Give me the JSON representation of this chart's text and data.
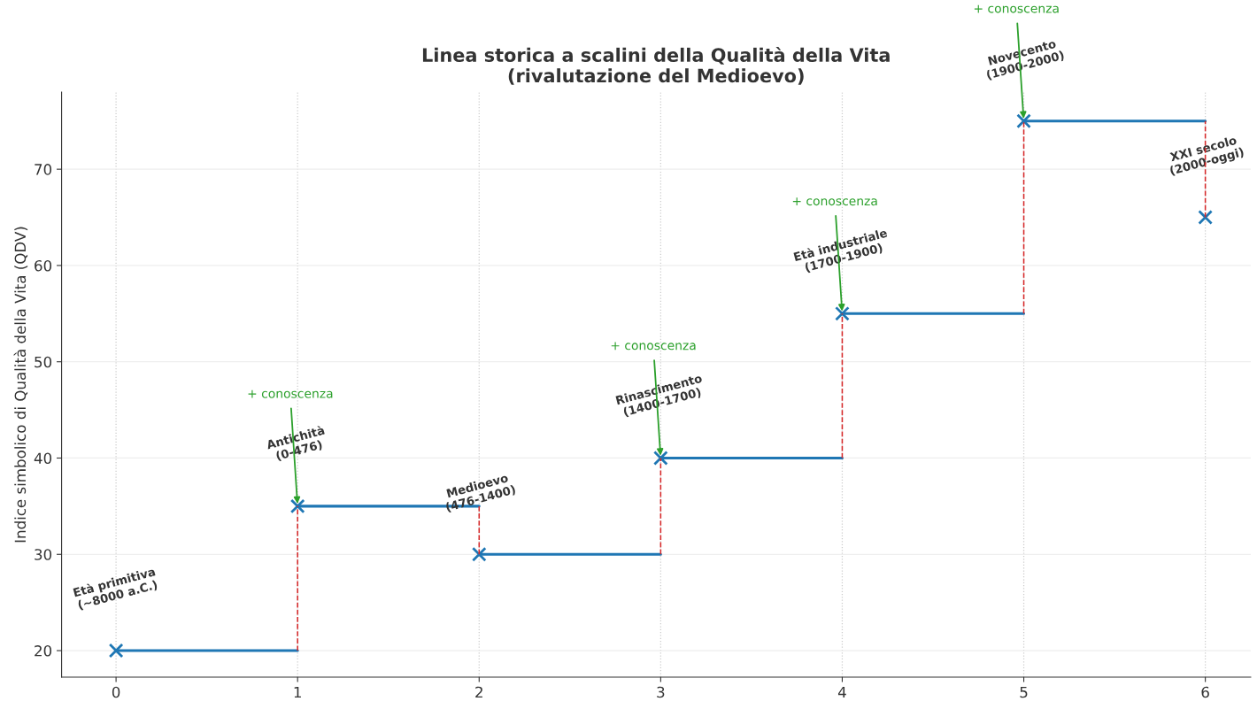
{
  "chart_data": {
    "type": "step",
    "title": "Linea storica a scalini della Qualità della Vita\n(rivalutazione del Medioevo)",
    "ylabel": "Indice simbolico di Qualità della Vita (QDV)",
    "x": [
      0,
      1,
      2,
      3,
      4,
      5,
      6
    ],
    "series": [
      {
        "color": "#1f77b4",
        "marker": "none",
        "values": [
          20,
          35,
          30,
          40,
          55,
          75,
          75
        ]
      },
      {
        "type": "scatter",
        "color": "#1f77b4",
        "marker": "cross",
        "values": [
          20,
          35,
          30,
          40,
          55,
          75,
          65
        ],
        "errors": [
          null,
          [
            20,
            35
          ],
          [
            30,
            35
          ],
          [
            30,
            40
          ],
          [
            40,
            55
          ],
          [
            55,
            75
          ],
          [
            65,
            75
          ]
        ]
      }
    ],
    "grid": true,
    "xlim": [
      -0.3,
      6.25
    ],
    "ylim": [
      17.25,
      78.0
    ],
    "xticks": [
      0,
      1,
      2,
      3,
      4,
      5,
      6
    ],
    "yticks": [
      20,
      30,
      40,
      50,
      60,
      70
    ],
    "annotations": [
      "Età primitiva\n(~8000 a.C.)",
      "Antichità\n(0-476)",
      "Medioevo\n(476-1400)",
      "Rinascimento\n(1400-1700)",
      "Età industriale\n(1700-1900)",
      "Novecento\n(1900-2000)",
      "XXI secolo\n(2000-oggi)",
      {
        "text": "+ conoscenza",
        "x": 1,
        "y": 35
      },
      {
        "text": "+ conoscenza",
        "x": 3,
        "y": 40
      },
      {
        "text": "+ conoscenza",
        "x": 4,
        "y": 55
      },
      {
        "text": "+ conoscenza",
        "x": 5,
        "y": 75
      }
    ]
  }
}
